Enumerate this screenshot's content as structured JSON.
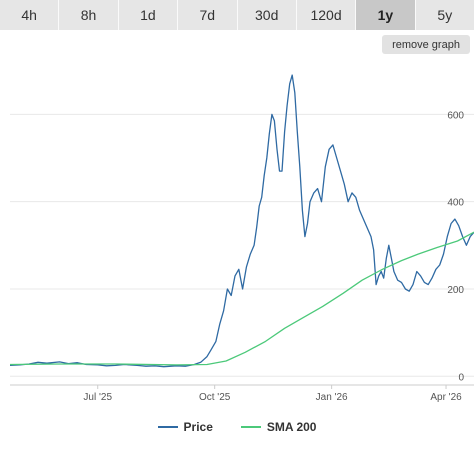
{
  "timeframes": [
    {
      "label": "4h",
      "active": false
    },
    {
      "label": "8h",
      "active": false
    },
    {
      "label": "1d",
      "active": false
    },
    {
      "label": "7d",
      "active": false
    },
    {
      "label": "30d",
      "active": false
    },
    {
      "label": "120d",
      "active": false
    },
    {
      "label": "1y",
      "active": true
    },
    {
      "label": "5y",
      "active": false
    }
  ],
  "remove_graph_label": "remove graph",
  "chart_data": {
    "type": "line",
    "xlabel": "",
    "ylabel": "",
    "x_range": [
      "2025-04-23",
      "2026-04-23"
    ],
    "ylim": [
      -20,
      720
    ],
    "y_ticks": [
      0,
      200,
      400,
      600
    ],
    "x_ticks": [
      {
        "date": "2025-07-01",
        "label": "Jul '25"
      },
      {
        "date": "2025-10-01",
        "label": "Oct '25"
      },
      {
        "date": "2026-01-01",
        "label": "Jan '26"
      },
      {
        "date": "2026-04-01",
        "label": "Apr '26"
      }
    ],
    "grid": "horizontal",
    "y_axis_side": "right",
    "legend_position": "bottom",
    "series": [
      {
        "name": "Price",
        "color": "#2f6aa3",
        "points": [
          [
            "2025-04-23",
            25
          ],
          [
            "2025-05-01",
            26
          ],
          [
            "2025-05-08",
            28
          ],
          [
            "2025-05-15",
            32
          ],
          [
            "2025-05-22",
            30
          ],
          [
            "2025-06-01",
            33
          ],
          [
            "2025-06-08",
            29
          ],
          [
            "2025-06-15",
            31
          ],
          [
            "2025-06-22",
            27
          ],
          [
            "2025-07-01",
            26
          ],
          [
            "2025-07-08",
            24
          ],
          [
            "2025-07-15",
            25
          ],
          [
            "2025-07-22",
            27
          ],
          [
            "2025-08-01",
            25
          ],
          [
            "2025-08-08",
            23
          ],
          [
            "2025-08-15",
            24
          ],
          [
            "2025-08-22",
            22
          ],
          [
            "2025-09-01",
            24
          ],
          [
            "2025-09-08",
            23
          ],
          [
            "2025-09-15",
            27
          ],
          [
            "2025-09-20",
            32
          ],
          [
            "2025-09-25",
            45
          ],
          [
            "2025-09-28",
            60
          ],
          [
            "2025-10-02",
            80
          ],
          [
            "2025-10-05",
            120
          ],
          [
            "2025-10-08",
            150
          ],
          [
            "2025-10-11",
            200
          ],
          [
            "2025-10-14",
            185
          ],
          [
            "2025-10-17",
            230
          ],
          [
            "2025-10-20",
            245
          ],
          [
            "2025-10-23",
            200
          ],
          [
            "2025-10-26",
            250
          ],
          [
            "2025-10-29",
            280
          ],
          [
            "2025-11-01",
            300
          ],
          [
            "2025-11-03",
            340
          ],
          [
            "2025-11-05",
            390
          ],
          [
            "2025-11-07",
            410
          ],
          [
            "2025-11-09",
            460
          ],
          [
            "2025-11-11",
            500
          ],
          [
            "2025-11-13",
            555
          ],
          [
            "2025-11-15",
            600
          ],
          [
            "2025-11-17",
            585
          ],
          [
            "2025-11-19",
            520
          ],
          [
            "2025-11-21",
            470
          ],
          [
            "2025-11-23",
            470
          ],
          [
            "2025-11-25",
            560
          ],
          [
            "2025-11-27",
            620
          ],
          [
            "2025-11-29",
            670
          ],
          [
            "2025-12-01",
            690
          ],
          [
            "2025-12-03",
            650
          ],
          [
            "2025-12-05",
            560
          ],
          [
            "2025-12-07",
            480
          ],
          [
            "2025-12-09",
            380
          ],
          [
            "2025-12-11",
            320
          ],
          [
            "2025-12-13",
            350
          ],
          [
            "2025-12-15",
            400
          ],
          [
            "2025-12-18",
            420
          ],
          [
            "2025-12-21",
            430
          ],
          [
            "2025-12-24",
            400
          ],
          [
            "2025-12-27",
            480
          ],
          [
            "2025-12-30",
            520
          ],
          [
            "2026-01-02",
            530
          ],
          [
            "2026-01-05",
            500
          ],
          [
            "2026-01-08",
            470
          ],
          [
            "2026-01-11",
            440
          ],
          [
            "2026-01-14",
            400
          ],
          [
            "2026-01-17",
            420
          ],
          [
            "2026-01-20",
            410
          ],
          [
            "2026-01-23",
            380
          ],
          [
            "2026-01-26",
            360
          ],
          [
            "2026-01-29",
            340
          ],
          [
            "2026-02-01",
            320
          ],
          [
            "2026-02-03",
            290
          ],
          [
            "2026-02-05",
            210
          ],
          [
            "2026-02-07",
            230
          ],
          [
            "2026-02-09",
            240
          ],
          [
            "2026-02-11",
            225
          ],
          [
            "2026-02-13",
            270
          ],
          [
            "2026-02-15",
            300
          ],
          [
            "2026-02-17",
            270
          ],
          [
            "2026-02-19",
            240
          ],
          [
            "2026-02-22",
            220
          ],
          [
            "2026-02-25",
            215
          ],
          [
            "2026-02-28",
            200
          ],
          [
            "2026-03-03",
            195
          ],
          [
            "2026-03-06",
            210
          ],
          [
            "2026-03-09",
            240
          ],
          [
            "2026-03-12",
            230
          ],
          [
            "2026-03-15",
            215
          ],
          [
            "2026-03-18",
            210
          ],
          [
            "2026-03-21",
            225
          ],
          [
            "2026-03-24",
            245
          ],
          [
            "2026-03-27",
            255
          ],
          [
            "2026-03-30",
            280
          ],
          [
            "2026-04-02",
            320
          ],
          [
            "2026-04-05",
            350
          ],
          [
            "2026-04-08",
            360
          ],
          [
            "2026-04-11",
            345
          ],
          [
            "2026-04-14",
            320
          ],
          [
            "2026-04-17",
            300
          ],
          [
            "2026-04-20",
            320
          ],
          [
            "2026-04-23",
            330
          ]
        ]
      },
      {
        "name": "SMA 200",
        "color": "#4cc97a",
        "points": [
          [
            "2025-04-23",
            27
          ],
          [
            "2025-06-01",
            28
          ],
          [
            "2025-07-15",
            28
          ],
          [
            "2025-09-01",
            26
          ],
          [
            "2025-09-25",
            27
          ],
          [
            "2025-10-10",
            35
          ],
          [
            "2025-10-25",
            55
          ],
          [
            "2025-11-10",
            80
          ],
          [
            "2025-11-25",
            110
          ],
          [
            "2025-12-10",
            135
          ],
          [
            "2025-12-25",
            160
          ],
          [
            "2026-01-10",
            190
          ],
          [
            "2026-01-25",
            220
          ],
          [
            "2026-02-10",
            245
          ],
          [
            "2026-02-25",
            265
          ],
          [
            "2026-03-10",
            280
          ],
          [
            "2026-03-25",
            295
          ],
          [
            "2026-04-10",
            310
          ],
          [
            "2026-04-23",
            330
          ]
        ]
      }
    ]
  }
}
